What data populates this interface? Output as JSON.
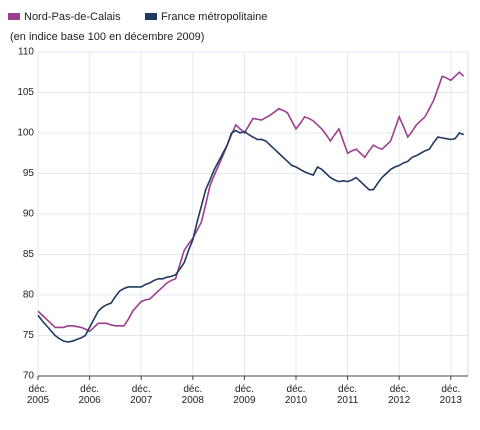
{
  "chart_data": {
    "type": "line",
    "subtitle": "(en indice base 100 en décembre 2009)",
    "categories": [
      "déc. 2005",
      null,
      null,
      null,
      null,
      null,
      null,
      null,
      null,
      null,
      null,
      null,
      "déc. 2006",
      null,
      null,
      null,
      null,
      null,
      null,
      null,
      null,
      null,
      null,
      null,
      "déc. 2007",
      null,
      null,
      null,
      null,
      null,
      null,
      null,
      null,
      null,
      null,
      null,
      "déc. 2008",
      null,
      null,
      null,
      null,
      null,
      null,
      null,
      null,
      null,
      null,
      null,
      "déc. 2009",
      null,
      null,
      null,
      null,
      null,
      null,
      null,
      null,
      null,
      null,
      null,
      "déc. 2010",
      null,
      null,
      null,
      null,
      null,
      null,
      null,
      null,
      null,
      null,
      null,
      "déc. 2011",
      null,
      null,
      null,
      null,
      null,
      null,
      null,
      null,
      null,
      null,
      null,
      "déc. 2012",
      null,
      null,
      null,
      null,
      null,
      null,
      null,
      null,
      null,
      null,
      null,
      "déc. 2013",
      null,
      null,
      null
    ],
    "series": [
      {
        "name": "Nord-Pas-de-Calais",
        "color": "#9c3f8f",
        "values": [
          78,
          77.5,
          77,
          76.5,
          76,
          76,
          76,
          76.2,
          76.2,
          76.1,
          76,
          75.8,
          75.5,
          76,
          76.5,
          76.5,
          76.5,
          76.3,
          76.2,
          76.2,
          76.2,
          77,
          78,
          78.6,
          79.2,
          79.4,
          79.5,
          80,
          80.5,
          81,
          81.5,
          81.8,
          82,
          83.8,
          85.5,
          86.3,
          87,
          88,
          89,
          91.2,
          93.5,
          94.8,
          96,
          97.2,
          98.5,
          99.8,
          101,
          100.5,
          100,
          100.9,
          101.8,
          101.7,
          101.6,
          101.9,
          102.2,
          102.6,
          103,
          102.8,
          102.5,
          101.5,
          100.5,
          101.2,
          102,
          101.8,
          101.5,
          101,
          100.5,
          99.8,
          99,
          99.8,
          100.5,
          99,
          97.5,
          97.8,
          98,
          97.5,
          97,
          97.8,
          98.5,
          98.2,
          98,
          98.5,
          99,
          100.5,
          102,
          100.8,
          99.5,
          100.2,
          101,
          101.5,
          102,
          103,
          104,
          105.5,
          107,
          106.8,
          106.5,
          107,
          107.5,
          107
        ]
      },
      {
        "name": "France métropolitaine",
        "color": "#1f3a5f",
        "values": [
          77.5,
          76.8,
          76.2,
          75.6,
          75,
          74.6,
          74.3,
          74.2,
          74.3,
          74.5,
          74.7,
          75,
          76,
          77,
          78,
          78.5,
          78.8,
          79,
          79.8,
          80.5,
          80.8,
          81,
          81,
          81,
          81,
          81.3,
          81.5,
          81.8,
          82,
          82,
          82.2,
          82.3,
          82.5,
          83.2,
          84,
          85.5,
          86.8,
          89,
          91,
          93,
          94.2,
          95.5,
          96.5,
          97.5,
          98.5,
          100,
          100.3,
          100,
          100.2,
          99.8,
          99.5,
          99.2,
          99.2,
          99,
          98.5,
          98,
          97.5,
          97,
          96.5,
          96,
          95.8,
          95.5,
          95.2,
          95,
          94.8,
          95.8,
          95.5,
          95,
          94.5,
          94.2,
          94,
          94.1,
          94,
          94.2,
          94.5,
          94,
          93.5,
          93,
          93,
          93.8,
          94.5,
          95,
          95.5,
          95.8,
          96,
          96.3,
          96.5,
          97,
          97.2,
          97.5,
          97.8,
          98,
          98.8,
          99.5,
          99.4,
          99.3,
          99.2,
          99.3,
          100,
          99.8
        ]
      }
    ],
    "ylim": [
      70,
      110
    ],
    "yticks": [
      70,
      75,
      80,
      85,
      90,
      95,
      100,
      105,
      110
    ],
    "grid": true
  }
}
